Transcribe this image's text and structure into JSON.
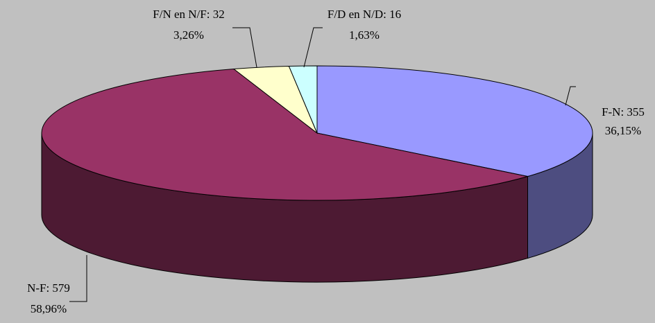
{
  "chart_data": {
    "type": "pie3d",
    "values": [
      355,
      579,
      32,
      16
    ],
    "value_labels": [
      "F-N: 355",
      "N-F: 579",
      "F/N en N/F: 32",
      "F/D en N/D: 16"
    ],
    "percent_labels": [
      "36,15%",
      "58,96%",
      "3,26%",
      "1,63%"
    ],
    "colors": [
      "#9999ff",
      "#993366",
      "#ffffcc",
      "#ccffff"
    ],
    "start_angle": -90,
    "direction": "clockwise"
  }
}
